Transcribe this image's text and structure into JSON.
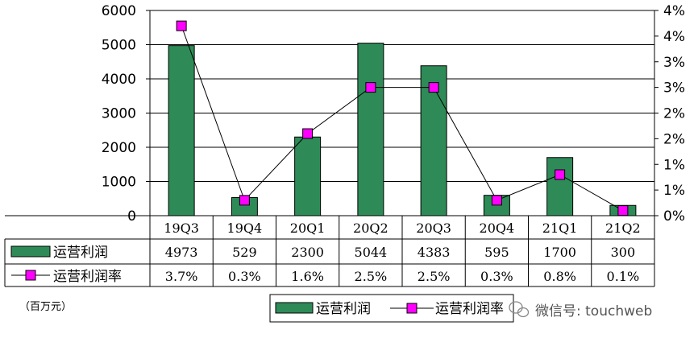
{
  "chart_data": {
    "type": "bar",
    "categories": [
      "19Q3",
      "19Q4",
      "20Q1",
      "20Q2",
      "20Q3",
      "20Q4",
      "21Q1",
      "21Q2"
    ],
    "series": [
      {
        "name": "运营利润",
        "type": "bar",
        "axis": "left",
        "color": "#2e8b57",
        "values": [
          4973,
          529,
          2300,
          5044,
          4383,
          595,
          1700,
          300
        ]
      },
      {
        "name": "运营利润率",
        "type": "line",
        "axis": "right",
        "color": "#ff00ff",
        "values": [
          3.7,
          0.3,
          1.6,
          2.5,
          2.5,
          0.3,
          0.8,
          0.1
        ]
      }
    ],
    "table_rows": [
      [
        "4973",
        "529",
        "2300",
        "5044",
        "4383",
        "595",
        "1700",
        "300"
      ],
      [
        "3.7%",
        "0.3%",
        "1.6%",
        "2.5%",
        "2.5%",
        "0.3%",
        "0.8%",
        "0.1%"
      ]
    ],
    "yaxis_left": {
      "range": [
        0,
        6000
      ],
      "ticks": [
        "0",
        "1000",
        "2000",
        "3000",
        "4000",
        "5000",
        "6000"
      ]
    },
    "yaxis_right": {
      "range": [
        0,
        4
      ],
      "ticks": [
        "0%",
        "1%",
        "1%",
        "2%",
        "2%",
        "3%",
        "3%",
        "4%",
        "4%"
      ]
    },
    "unit_note": "（百万元）",
    "legend": {
      "placement": "bottom",
      "items": [
        "运营利润",
        "运营利润率"
      ]
    },
    "watermark": "微信号: touchweb",
    "grid": true
  }
}
